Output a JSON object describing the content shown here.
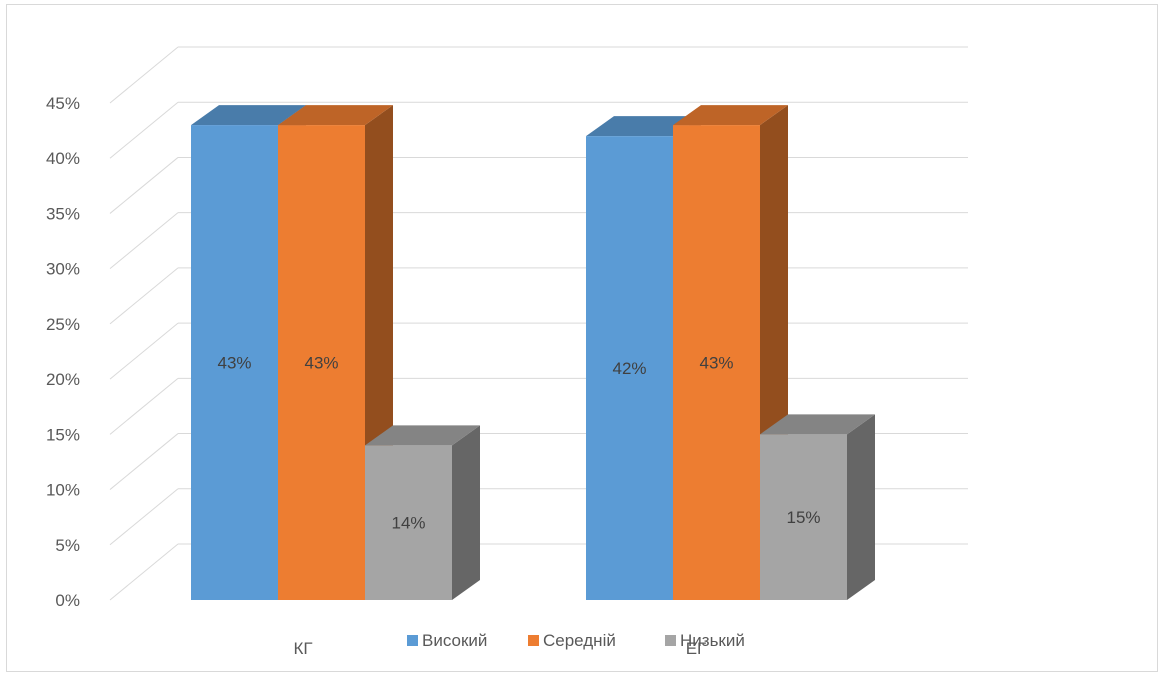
{
  "chart_data": {
    "type": "bar",
    "title": "",
    "xlabel": "",
    "ylabel": "",
    "categories": [
      "КГ",
      "ЕГ"
    ],
    "series": [
      {
        "name": "Високий",
        "values": [
          43,
          42
        ],
        "labels": [
          "43%",
          "42%"
        ],
        "color": "#5B9BD5"
      },
      {
        "name": "Середній",
        "values": [
          43,
          43
        ],
        "labels": [
          "43%",
          "43%"
        ],
        "color": "#ED7D31"
      },
      {
        "name": "Низький",
        "values": [
          14,
          15
        ],
        "labels": [
          "14%",
          "15%"
        ],
        "color": "#A5A5A5"
      }
    ],
    "ylim": [
      0,
      45
    ],
    "yticks": [
      "0%",
      "5%",
      "10%",
      "15%",
      "20%",
      "25%",
      "30%",
      "35%",
      "40%",
      "45%"
    ],
    "grid": true,
    "legend": "bottom",
    "style": "3d-clustered-column"
  }
}
